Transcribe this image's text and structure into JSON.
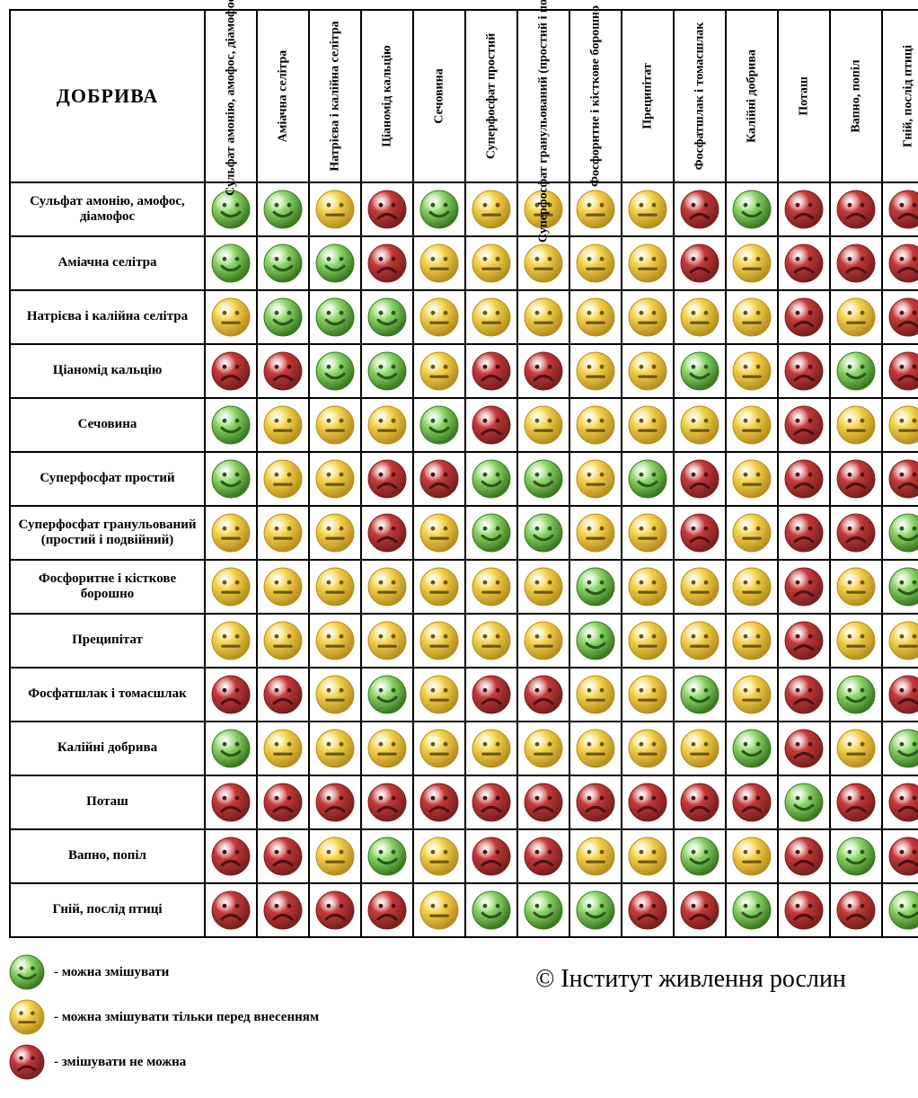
{
  "title": "ДОБРИВА",
  "credit": "© Інститут живлення рослин",
  "labels": [
    "Сульфат амонію, амофос, діамофос",
    "Аміачна селітра",
    "Натрієва і калійна селітра",
    "Ціаномід кальцію",
    "Сечовина",
    "Суперфосфат простий",
    "Суперфосфат гранульований (простий і подвійний)",
    "Фосфоритне і кісткове борошно",
    "Преципітат",
    "Фосфатшлак і томасшлак",
    "Калійні добрива",
    "Поташ",
    "Вапно, попіл",
    "Гній, послід птиці"
  ],
  "states": {
    "g": {
      "fill": "#8fd66b",
      "stroke": "#3a7a1f",
      "mouth": "smile",
      "eye": "#2a5a18"
    },
    "y": {
      "fill": "#f4d24a",
      "stroke": "#b78f1f",
      "mouth": "flat",
      "eye": "#6b5510"
    },
    "r": {
      "fill": "#c63a3a",
      "stroke": "#7a1f1f",
      "mouth": "frown",
      "eye": "#4a1212"
    }
  },
  "matrix": [
    [
      "g",
      "g",
      "y",
      "r",
      "g",
      "y",
      "y",
      "y",
      "y",
      "r",
      "g",
      "r",
      "r",
      "r"
    ],
    [
      "g",
      "g",
      "g",
      "r",
      "y",
      "y",
      "y",
      "y",
      "y",
      "r",
      "y",
      "r",
      "r",
      "r"
    ],
    [
      "y",
      "g",
      "g",
      "g",
      "y",
      "y",
      "y",
      "y",
      "y",
      "y",
      "y",
      "r",
      "y",
      "r"
    ],
    [
      "r",
      "r",
      "g",
      "g",
      "y",
      "r",
      "r",
      "y",
      "y",
      "g",
      "y",
      "r",
      "g",
      "r"
    ],
    [
      "g",
      "y",
      "y",
      "y",
      "g",
      "r",
      "y",
      "y",
      "y",
      "y",
      "y",
      "r",
      "y",
      "y"
    ],
    [
      "g",
      "y",
      "y",
      "r",
      "r",
      "g",
      "g",
      "y",
      "g",
      "r",
      "y",
      "r",
      "r",
      "r"
    ],
    [
      "y",
      "y",
      "y",
      "r",
      "y",
      "g",
      "g",
      "y",
      "y",
      "r",
      "y",
      "r",
      "r",
      "g"
    ],
    [
      "y",
      "y",
      "y",
      "y",
      "y",
      "y",
      "y",
      "g",
      "y",
      "y",
      "y",
      "r",
      "y",
      "g"
    ],
    [
      "y",
      "y",
      "y",
      "y",
      "y",
      "y",
      "y",
      "g",
      "y",
      "y",
      "y",
      "r",
      "y",
      "y"
    ],
    [
      "r",
      "r",
      "y",
      "g",
      "y",
      "r",
      "r",
      "y",
      "y",
      "g",
      "y",
      "r",
      "g",
      "r"
    ],
    [
      "g",
      "y",
      "y",
      "y",
      "y",
      "y",
      "y",
      "y",
      "y",
      "y",
      "g",
      "r",
      "y",
      "g"
    ],
    [
      "r",
      "r",
      "r",
      "r",
      "r",
      "r",
      "r",
      "r",
      "r",
      "r",
      "r",
      "g",
      "r",
      "r"
    ],
    [
      "r",
      "r",
      "y",
      "g",
      "y",
      "r",
      "r",
      "y",
      "y",
      "g",
      "y",
      "r",
      "g",
      "r"
    ],
    [
      "r",
      "r",
      "r",
      "r",
      "y",
      "g",
      "g",
      "g",
      "r",
      "r",
      "g",
      "r",
      "r",
      "g"
    ]
  ],
  "legend": [
    {
      "state": "g",
      "text": "- можна змішувати"
    },
    {
      "state": "y",
      "text": "- можна змішувати тільки перед внесенням"
    },
    {
      "state": "r",
      "text": "- змішувати не можна"
    }
  ],
  "style": {
    "face_radius": 22,
    "legend_face_radius": 20,
    "border_color": "#000000",
    "background": "#ffffff"
  }
}
